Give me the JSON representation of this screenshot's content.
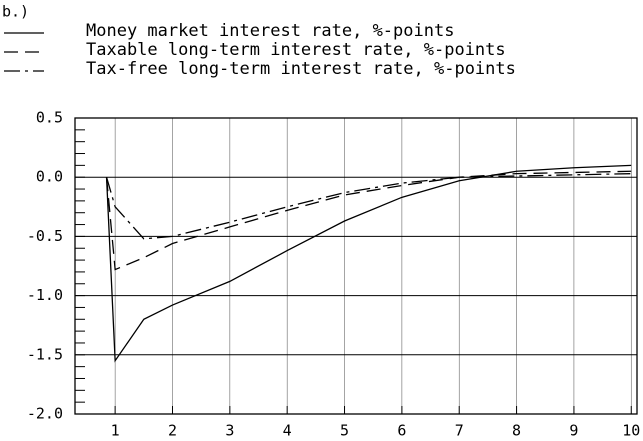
{
  "chart_data": {
    "type": "line",
    "title": "b.)",
    "x": [
      0.85,
      1,
      1.5,
      2,
      3,
      4,
      5,
      6,
      7,
      8,
      9,
      10
    ],
    "series": [
      {
        "name": "Money market interest rate, %-points",
        "color": "#000000",
        "style": "solid",
        "values": [
          0,
          -1.55,
          -1.2,
          -1.08,
          -0.88,
          -0.62,
          -0.37,
          -0.17,
          -0.03,
          0.05,
          0.08,
          0.1
        ]
      },
      {
        "name": "Taxable long-term interest rate, %-points",
        "color": "#000000",
        "style": "dashed",
        "values": [
          0,
          -0.78,
          -0.68,
          -0.56,
          -0.42,
          -0.28,
          -0.15,
          -0.07,
          0,
          0.03,
          0.04,
          0.05
        ]
      },
      {
        "name": "Tax-free long-term interest rate, %-points",
        "color": "#000000",
        "style": "dash-dot",
        "values": [
          0,
          -0.25,
          -0.52,
          -0.5,
          -0.38,
          -0.25,
          -0.13,
          -0.05,
          0,
          0.01,
          0.02,
          0.03
        ]
      }
    ],
    "xlim": [
      0.3,
      10.1
    ],
    "xticks": [
      1,
      2,
      3,
      4,
      5,
      6,
      7,
      8,
      9,
      10
    ],
    "ylim": [
      -2.0,
      0.5
    ],
    "yticks": [
      {
        "value": 0.5,
        "label": "0.5"
      },
      {
        "value": 0,
        "label": "0.0"
      },
      {
        "value": -0.5,
        "label": "-0.5"
      },
      {
        "value": -1,
        "label": "-1.0"
      },
      {
        "value": -1.5,
        "label": "-1.5"
      },
      {
        "value": -2,
        "label": "-2.0"
      }
    ],
    "grid": true
  }
}
